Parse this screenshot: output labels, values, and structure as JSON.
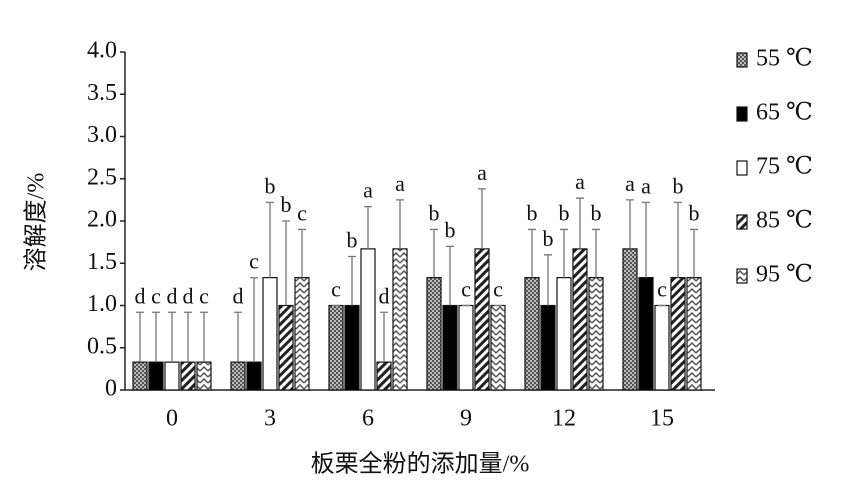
{
  "chart_data": {
    "type": "bar",
    "xlabel": "板栗全粉的添加量/%",
    "ylabel": "溶解度/%",
    "categories": [
      "0",
      "3",
      "6",
      "9",
      "12",
      "15"
    ],
    "ylim": [
      0,
      4
    ],
    "yticks": [
      0,
      0.5,
      {
        "value": 1,
        "label": "1.0"
      },
      1.5,
      {
        "value": 2,
        "label": "2.0"
      },
      2.5,
      {
        "value": 3,
        "label": "3.0"
      },
      3.5,
      {
        "value": 4,
        "label": "4.0"
      }
    ],
    "series": [
      {
        "name": "55 ℃",
        "color": "#888888",
        "pattern": "dots",
        "values": [
          0.33,
          0.33,
          1.0,
          1.33,
          1.33,
          1.67
        ],
        "errors": [
          0.59,
          0.59,
          0,
          0.57,
          0.57,
          0.58
        ],
        "letters": [
          "d",
          "d",
          "c",
          "b",
          "b",
          "a"
        ]
      },
      {
        "name": "65 ℃",
        "color": "#000000",
        "pattern": "solid",
        "values": [
          0.33,
          0.33,
          1.0,
          1.0,
          1.0,
          1.33
        ],
        "errors": [
          0.59,
          1.0,
          0.58,
          0.7,
          0.6,
          0.89
        ],
        "letters": [
          "c",
          "c",
          "b",
          "b",
          "b",
          "a"
        ]
      },
      {
        "name": "75 ℃",
        "color": "#ffffff",
        "pattern": "none",
        "values": [
          0.33,
          1.33,
          1.67,
          1.0,
          1.33,
          1.0
        ],
        "errors": [
          0.59,
          0.89,
          0.5,
          0,
          0.57,
          0
        ],
        "letters": [
          "d",
          "b",
          "a",
          "c",
          "b",
          "c"
        ]
      },
      {
        "name": "85 ℃",
        "color": "#333333",
        "pattern": "diagonal",
        "values": [
          0.33,
          1.0,
          0.33,
          1.67,
          1.67,
          1.33
        ],
        "errors": [
          0.59,
          1.0,
          0.59,
          0.71,
          0.6,
          0.89
        ],
        "letters": [
          "d",
          "b",
          "d",
          "a",
          "a",
          "b"
        ]
      },
      {
        "name": "95 ℃",
        "color": "#555555",
        "pattern": "zigzag",
        "values": [
          0.33,
          1.33,
          1.67,
          1.0,
          1.33,
          1.33
        ],
        "errors": [
          0.59,
          0.57,
          0.58,
          0,
          0.57,
          0.57
        ],
        "letters": [
          "c",
          "c",
          "a",
          "c",
          "b",
          "b"
        ]
      }
    ]
  }
}
